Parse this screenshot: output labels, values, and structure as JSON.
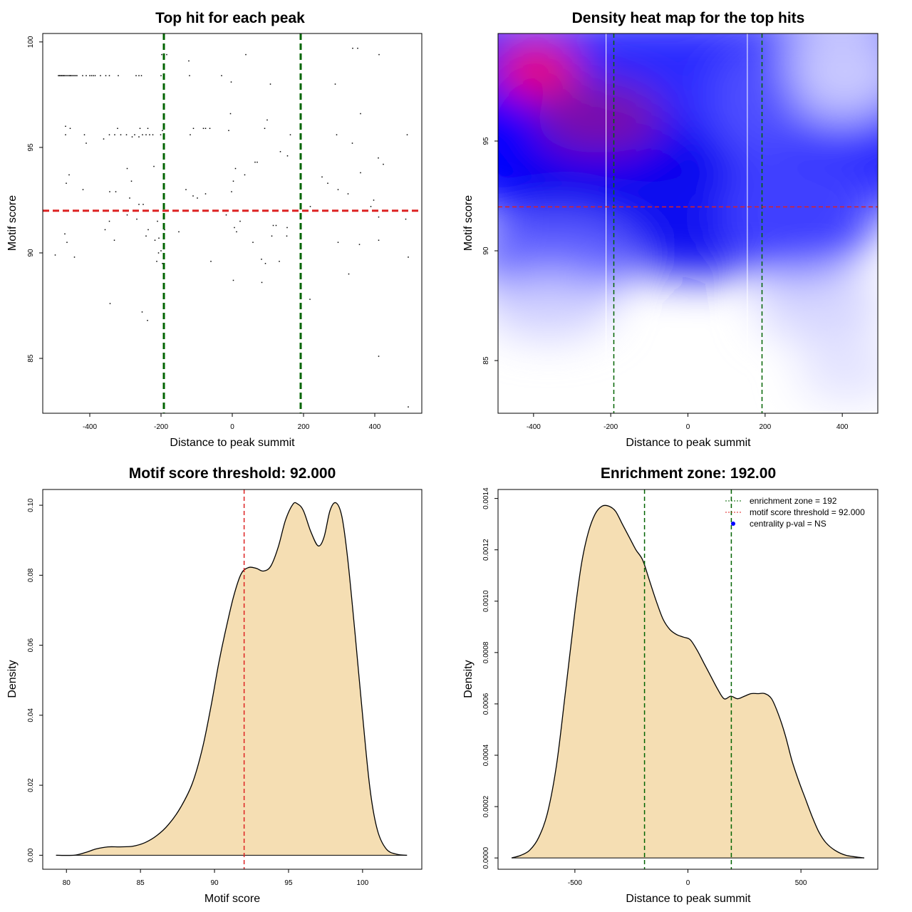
{
  "chart_data": [
    {
      "id": "scatter",
      "type": "scatter",
      "title": "Top hit for each peak",
      "xlabel": "Distance to peak summit",
      "ylabel": "Motif score",
      "xlim": [
        -532,
        532
      ],
      "ylim": [
        82.4,
        100.4
      ],
      "xticks": [
        -400,
        -200,
        0,
        200,
        400
      ],
      "yticks": [
        85,
        90,
        95,
        100
      ],
      "grid": false,
      "point_color": "#000000",
      "vlines": [
        {
          "x": -192,
          "color": "#006400",
          "style": "dashed"
        },
        {
          "x": 192,
          "color": "#006400",
          "style": "dashed"
        }
      ],
      "hlines": [
        {
          "y": 92,
          "color": "#dd2222",
          "style": "dashed"
        }
      ],
      "points": [
        [
          -488,
          98.4
        ],
        [
          -485,
          98.4
        ],
        [
          -482,
          98.4
        ],
        [
          -479,
          98.4
        ],
        [
          -476,
          98.4
        ],
        [
          -473,
          98.4
        ],
        [
          -470,
          98.4
        ],
        [
          -466,
          98.4
        ],
        [
          -462,
          98.4
        ],
        [
          -458,
          98.4
        ],
        [
          -455,
          98.4
        ],
        [
          -452,
          98.4
        ],
        [
          -448,
          98.4
        ],
        [
          -444,
          98.4
        ],
        [
          -440,
          98.4
        ],
        [
          -436,
          98.4
        ],
        [
          -420,
          98.4
        ],
        [
          -410,
          98.4
        ],
        [
          -400,
          98.4
        ],
        [
          -395,
          98.4
        ],
        [
          -390,
          98.4
        ],
        [
          -385,
          98.4
        ],
        [
          -370,
          98.4
        ],
        [
          -355,
          98.4
        ],
        [
          -345,
          98.4
        ],
        [
          -320,
          98.4
        ],
        [
          -270,
          98.4
        ],
        [
          -262,
          98.4
        ],
        [
          -255,
          98.4
        ],
        [
          -120,
          98.4
        ],
        [
          -30,
          98.4
        ],
        [
          -200,
          98.4
        ],
        [
          -198,
          99.4
        ],
        [
          -184,
          99.4
        ],
        [
          -122,
          99.1
        ],
        [
          38,
          99.4
        ],
        [
          338,
          99.7
        ],
        [
          352,
          99.7
        ],
        [
          412,
          99.4
        ],
        [
          -3,
          98.1
        ],
        [
          107,
          98.0
        ],
        [
          289,
          98.0
        ],
        [
          -468,
          96.0
        ],
        [
          -455,
          95.9
        ],
        [
          -468,
          95.6
        ],
        [
          -415,
          95.6
        ],
        [
          -410,
          95.2
        ],
        [
          -361,
          95.4
        ],
        [
          -345,
          95.6
        ],
        [
          -330,
          95.6
        ],
        [
          -313,
          95.6
        ],
        [
          -297,
          95.6
        ],
        [
          -281,
          95.5
        ],
        [
          -274,
          95.6
        ],
        [
          -262,
          95.5
        ],
        [
          -252,
          95.6
        ],
        [
          -242,
          95.6
        ],
        [
          -232,
          95.6
        ],
        [
          -223,
          95.6
        ],
        [
          -201,
          95.6
        ],
        [
          -196,
          95.8
        ],
        [
          -118,
          95.6
        ],
        [
          -109,
          95.9
        ],
        [
          -81,
          95.9
        ],
        [
          -63,
          95.9
        ],
        [
          -5,
          96.6
        ],
        [
          -10,
          95.8
        ],
        [
          91,
          95.9
        ],
        [
          98,
          96.3
        ],
        [
          163,
          95.6
        ],
        [
          293,
          95.6
        ],
        [
          360,
          96.6
        ],
        [
          491,
          95.6
        ],
        [
          -259,
          95.9
        ],
        [
          -237,
          95.9
        ],
        [
          -322,
          95.9
        ],
        [
          -75,
          95.9
        ],
        [
          -220,
          94.1
        ],
        [
          -295,
          94.0
        ],
        [
          -283,
          93.4
        ],
        [
          -327,
          92.9
        ],
        [
          -458,
          93.7
        ],
        [
          -466,
          93.3
        ],
        [
          -419,
          93.0
        ],
        [
          -344,
          92.9
        ],
        [
          -288,
          92.6
        ],
        [
          -262,
          92.3
        ],
        [
          -250,
          92.3
        ],
        [
          -190,
          92.0
        ],
        [
          -98,
          92.6
        ],
        [
          -130,
          93.0
        ],
        [
          -110,
          92.7
        ],
        [
          -75,
          92.8
        ],
        [
          -2,
          92.9
        ],
        [
          3,
          93.4
        ],
        [
          9,
          94.0
        ],
        [
          35,
          93.7
        ],
        [
          64,
          94.3
        ],
        [
          70,
          94.3
        ],
        [
          135,
          94.8
        ],
        [
          155,
          94.6
        ],
        [
          191,
          94.2
        ],
        [
          252,
          93.6
        ],
        [
          268,
          93.3
        ],
        [
          297,
          93.0
        ],
        [
          325,
          92.8
        ],
        [
          337,
          95.2
        ],
        [
          360,
          93.8
        ],
        [
          397,
          92.5
        ],
        [
          410,
          94.5
        ],
        [
          424,
          94.2
        ],
        [
          219,
          92.2
        ],
        [
          389,
          92.2
        ],
        [
          -295,
          91.8
        ],
        [
          -268,
          91.6
        ],
        [
          -236,
          91.1
        ],
        [
          -210,
          91.5
        ],
        [
          -190,
          91.1
        ],
        [
          -150,
          91.0
        ],
        [
          -17,
          91.8
        ],
        [
          6,
          91.2
        ],
        [
          12,
          91.0
        ],
        [
          22,
          91.5
        ],
        [
          115,
          91.3
        ],
        [
          123,
          91.3
        ],
        [
          154,
          91.2
        ],
        [
          411,
          91.7
        ],
        [
          487,
          91.6
        ],
        [
          -345,
          91.5
        ],
        [
          -357,
          91.1
        ],
        [
          -470,
          90.9
        ],
        [
          -464,
          90.5
        ],
        [
          -331,
          90.6
        ],
        [
          -242,
          90.8
        ],
        [
          -206,
          90.7
        ],
        [
          -217,
          90.6
        ],
        [
          -207,
          90.0
        ],
        [
          -196,
          89.5
        ],
        [
          -212,
          89.6
        ],
        [
          -60,
          89.6
        ],
        [
          58,
          90.5
        ],
        [
          82,
          89.7
        ],
        [
          93,
          89.5
        ],
        [
          111,
          90.8
        ],
        [
          132,
          89.6
        ],
        [
          153,
          90.8
        ],
        [
          297,
          90.5
        ],
        [
          357,
          90.4
        ],
        [
          411,
          90.6
        ],
        [
          -497,
          89.9
        ],
        [
          -443,
          89.8
        ],
        [
          -200,
          90.1
        ],
        [
          494,
          89.8
        ],
        [
          3,
          88.7
        ],
        [
          83,
          88.6
        ],
        [
          327,
          89.0
        ],
        [
          218,
          87.8
        ],
        [
          -343,
          87.6
        ],
        [
          -253,
          87.2
        ],
        [
          -238,
          86.8
        ],
        [
          411,
          85.1
        ],
        [
          494,
          82.7
        ]
      ]
    },
    {
      "id": "heatmap",
      "type": "heatmap",
      "title": "Density heat map for the top hits",
      "xlabel": "Distance to peak summit",
      "ylabel": "Motif score",
      "xlim": [
        -492,
        492
      ],
      "ylim": [
        82.6,
        99.9
      ],
      "xticks": [
        -400,
        -200,
        0,
        200,
        400
      ],
      "yticks": [
        85,
        90,
        95
      ],
      "colors": {
        "low": "#ffffff",
        "mid": "#0000ff",
        "high": "#ff0000"
      },
      "white_vlines": [
        -212,
        154
      ],
      "vlines": [
        {
          "x": -192,
          "color": "#006400",
          "style": "dashed"
        },
        {
          "x": 192,
          "color": "#006400",
          "style": "dashed"
        }
      ],
      "hlines": [
        {
          "y": 92,
          "color": "#dd2222",
          "style": "dashed"
        }
      ]
    },
    {
      "id": "score_density",
      "type": "area",
      "title": "Motif score threshold: 92.000",
      "xlabel": "Motif score",
      "ylabel": "Density",
      "xlim": [
        78.4,
        104.0
      ],
      "ylim": [
        -0.004,
        0.1045
      ],
      "xticks": [
        80,
        85,
        90,
        95,
        100
      ],
      "yticks": [
        0.0,
        0.02,
        0.04,
        0.06,
        0.08,
        0.1
      ],
      "ytick_labels": [
        "0.00",
        "0.02",
        "0.04",
        "0.06",
        "0.08",
        "0.10"
      ],
      "fill": "#f5deb3",
      "vlines": [
        {
          "x": 92,
          "color": "#dd2222",
          "style": "dashed"
        }
      ],
      "points": [
        [
          79.3,
          0.0
        ],
        [
          80.5,
          0.0
        ],
        [
          81.3,
          0.0008
        ],
        [
          82.0,
          0.0018
        ],
        [
          82.8,
          0.0024
        ],
        [
          83.6,
          0.0024
        ],
        [
          84.5,
          0.0026
        ],
        [
          85.3,
          0.0036
        ],
        [
          86.1,
          0.0056
        ],
        [
          86.9,
          0.0088
        ],
        [
          87.7,
          0.0136
        ],
        [
          88.5,
          0.0205
        ],
        [
          89.2,
          0.0308
        ],
        [
          89.8,
          0.0434
        ],
        [
          90.3,
          0.0552
        ],
        [
          90.8,
          0.0652
        ],
        [
          91.3,
          0.0741
        ],
        [
          91.8,
          0.0804
        ],
        [
          92.3,
          0.0822
        ],
        [
          92.8,
          0.082
        ],
        [
          93.3,
          0.0812
        ],
        [
          93.8,
          0.0826
        ],
        [
          94.3,
          0.088
        ],
        [
          94.8,
          0.0958
        ],
        [
          95.3,
          0.1003
        ],
        [
          95.6,
          0.1004
        ],
        [
          96.0,
          0.0985
        ],
        [
          96.5,
          0.0925
        ],
        [
          97.0,
          0.0884
        ],
        [
          97.4,
          0.0909
        ],
        [
          97.8,
          0.0985
        ],
        [
          98.2,
          0.1007
        ],
        [
          98.6,
          0.0968
        ],
        [
          99.0,
          0.0845
        ],
        [
          99.5,
          0.063
        ],
        [
          100.0,
          0.04
        ],
        [
          100.5,
          0.019
        ],
        [
          101.0,
          0.0072
        ],
        [
          101.6,
          0.0018
        ],
        [
          102.3,
          0.0003
        ],
        [
          103.0,
          0.0
        ]
      ]
    },
    {
      "id": "distance_density",
      "type": "area",
      "title": "Enrichment zone: 192.00",
      "xlabel": "Distance to peak summit",
      "ylabel": "Density",
      "xlim": [
        -840,
        840
      ],
      "ylim": [
        -4.4e-05,
        0.001435
      ],
      "xticks": [
        -500,
        0,
        500
      ],
      "yticks": [
        0.0,
        0.0002,
        0.0004,
        0.0006,
        0.0008,
        0.001,
        0.0012,
        0.0014
      ],
      "ytick_labels": [
        "0.0000",
        "0.0002",
        "0.0004",
        "0.0006",
        "0.0008",
        "0.0010",
        "0.0012",
        "0.0014"
      ],
      "fill": "#f5deb3",
      "vlines": [
        {
          "x": -192,
          "color": "#006400",
          "style": "dashed"
        },
        {
          "x": 192,
          "color": "#006400",
          "style": "dashed"
        }
      ],
      "legend": [
        {
          "label": "enrichment zone = 192",
          "color": "#006400",
          "marker": "dotted-line"
        },
        {
          "label": "motif score threshold = 92.000",
          "color": "#dd2222",
          "marker": "dotted-line"
        },
        {
          "label": "centrality p-val = NS",
          "color": "#0000ff",
          "marker": "dot"
        }
      ],
      "legend_position": "top-right",
      "points": [
        [
          -780,
          0.0
        ],
        [
          -740,
          1e-05
        ],
        [
          -700,
          3e-05
        ],
        [
          -660,
          8e-05
        ],
        [
          -620,
          0.00018
        ],
        [
          -580,
          0.00037
        ],
        [
          -540,
          0.00066
        ],
        [
          -500,
          0.00096
        ],
        [
          -470,
          0.00115
        ],
        [
          -440,
          0.00127
        ],
        [
          -410,
          0.00134
        ],
        [
          -380,
          0.00137
        ],
        [
          -350,
          0.00137
        ],
        [
          -320,
          0.00135
        ],
        [
          -290,
          0.0013
        ],
        [
          -260,
          0.00125
        ],
        [
          -230,
          0.0012
        ],
        [
          -200,
          0.00116
        ],
        [
          -170,
          0.00108
        ],
        [
          -140,
          0.001
        ],
        [
          -110,
          0.00093
        ],
        [
          -80,
          0.00089
        ],
        [
          -50,
          0.00087
        ],
        [
          -20,
          0.00086
        ],
        [
          10,
          0.00085
        ],
        [
          40,
          0.00081
        ],
        [
          70,
          0.00076
        ],
        [
          100,
          0.00071
        ],
        [
          130,
          0.00066
        ],
        [
          160,
          0.00062
        ],
        [
          190,
          0.00063
        ],
        [
          220,
          0.00062
        ],
        [
          250,
          0.00063
        ],
        [
          280,
          0.00064
        ],
        [
          310,
          0.00064
        ],
        [
          340,
          0.00064
        ],
        [
          370,
          0.00062
        ],
        [
          400,
          0.00056
        ],
        [
          430,
          0.00048
        ],
        [
          460,
          0.00038
        ],
        [
          490,
          0.0003
        ],
        [
          520,
          0.00023
        ],
        [
          550,
          0.00016
        ],
        [
          580,
          0.0001
        ],
        [
          610,
          6e-05
        ],
        [
          650,
          3e-05
        ],
        [
          700,
          1e-05
        ],
        [
          780,
          0.0
        ]
      ]
    }
  ]
}
